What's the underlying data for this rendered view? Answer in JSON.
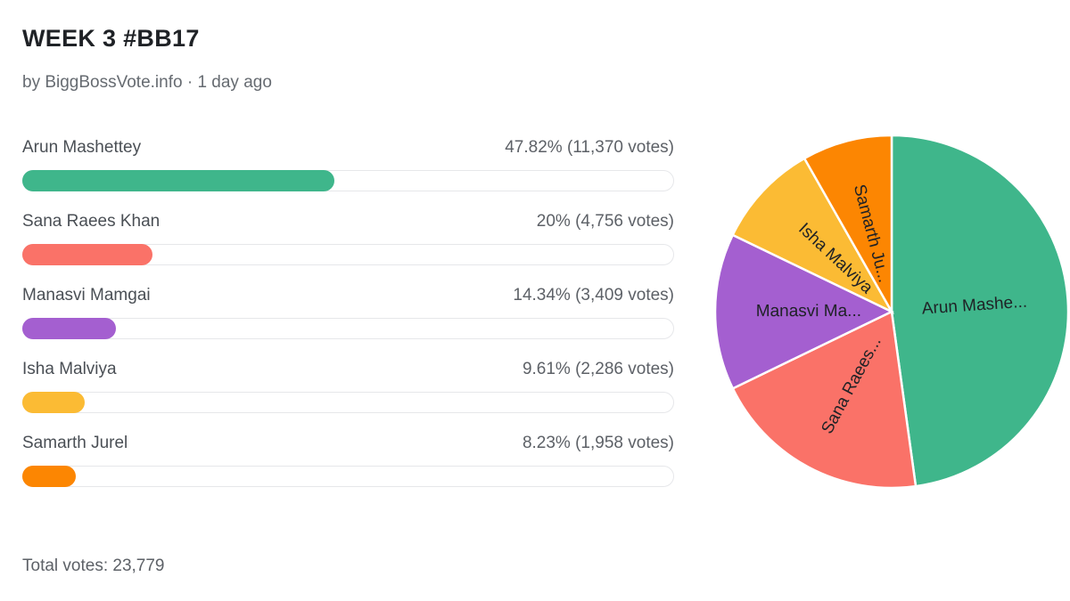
{
  "poll": {
    "title": "WEEK 3 #BB17",
    "byline": "by BiggBossVote.info · 1 day ago",
    "total_label": "Total votes: 23,779"
  },
  "chart_data": {
    "type": "bar",
    "orientation": "horizontal",
    "categories": [
      "Arun Mashettey",
      "Sana Raees Khan",
      "Manasvi Mamgai",
      "Isha Malviya",
      "Samarth Jurel"
    ],
    "values": [
      47.82,
      20,
      14.34,
      9.61,
      8.23
    ],
    "votes": [
      11370,
      4756,
      3409,
      2286,
      1958
    ],
    "stat_labels": [
      "47.82% (11,370 votes)",
      "20% (4,756 votes)",
      "14.34% (3,409 votes)",
      "9.61% (2,286 votes)",
      "8.23% (1,958 votes)"
    ],
    "colors": [
      "#3fb68b",
      "#fa7268",
      "#a45fd0",
      "#fbbb34",
      "#fc8602"
    ],
    "xlim": [
      0,
      100
    ],
    "total_votes": 23779
  },
  "pie_chart": {
    "type": "pie",
    "labels": [
      "Arun Mashe...",
      "Sana Raees...",
      "Manasvi Ma...",
      "Isha Malviya",
      "Samarth Ju..."
    ],
    "values": [
      47.82,
      20,
      14.34,
      9.61,
      8.23
    ],
    "colors": [
      "#3fb68b",
      "#fa7268",
      "#a45fd0",
      "#fbbb34",
      "#fc8602"
    ]
  }
}
